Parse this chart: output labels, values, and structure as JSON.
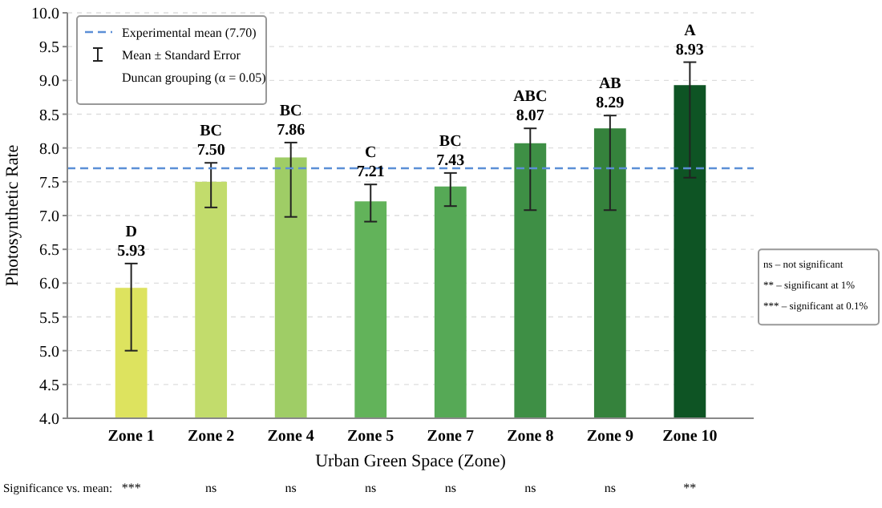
{
  "chart_data": {
    "type": "bar",
    "xlabel": "Urban Green Space (Zone)",
    "ylabel": "Photosynthetic Rate",
    "categories": [
      "Zone 1",
      "Zone 2",
      "Zone 4",
      "Zone 5",
      "Zone 7",
      "Zone 8",
      "Zone 9",
      "Zone 10"
    ],
    "values": [
      5.93,
      7.5,
      7.86,
      7.21,
      7.43,
      8.07,
      8.29,
      8.93
    ],
    "colors": [
      "#dde35f",
      "#c2dc6c",
      "#9fcd66",
      "#62b35a",
      "#56a956",
      "#3e8f45",
      "#35823c",
      "#0e5424"
    ],
    "errors": [
      [
        5.0,
        6.29
      ],
      [
        7.12,
        7.78
      ],
      [
        6.98,
        8.08
      ],
      [
        6.91,
        7.46
      ],
      [
        7.14,
        7.63
      ],
      [
        7.08,
        8.29
      ],
      [
        7.08,
        8.48
      ],
      [
        7.56,
        9.27
      ]
    ],
    "value_labels": [
      "5.93",
      "7.50",
      "7.86",
      "7.21",
      "7.43",
      "8.07",
      "8.29",
      "8.93"
    ],
    "ylim": [
      4.0,
      10.0
    ],
    "yticks": [
      {
        "value": 4,
        "label": "4.0"
      },
      {
        "value": 4.5,
        "label": "4.5"
      },
      {
        "value": 5,
        "label": "5.0"
      },
      {
        "value": 5.5,
        "label": "5.5"
      },
      {
        "value": 6,
        "label": "6.0"
      },
      {
        "value": 6.5,
        "label": "6.5"
      },
      {
        "value": 7,
        "label": "7.0"
      },
      {
        "value": 7.5,
        "label": "7.5"
      },
      {
        "value": 8,
        "label": "8.0"
      },
      {
        "value": 8.5,
        "label": "8.5"
      },
      {
        "value": 9,
        "label": "9.0"
      },
      {
        "value": 9.5,
        "label": "9.5"
      },
      {
        "value": 10,
        "label": "10.0"
      }
    ],
    "grid": "y",
    "legend": "top left",
    "ref_lines": [
      {
        "axis": "y",
        "value": 7.7,
        "label": "Experimental mean (7.70)",
        "color": "#5b8fd6",
        "line_style": "dashed"
      }
    ],
    "annotations": [
      "Mean ± Standard Error",
      "Duncan grouping (α = 0.05)",
      "Significance vs. mean:",
      "***",
      "ns",
      "ns",
      "ns",
      "ns",
      "ns",
      "ns",
      "**",
      "ns – not significant",
      "** – significant at 1%",
      "*** – significant at 0.1%",
      {
        "text": "D",
        "x": "Zone 1",
        "y": 6.29
      },
      {
        "text": "BC",
        "x": "Zone 2",
        "y": 7.78
      },
      {
        "text": "BC",
        "x": "Zone 4",
        "y": 8.08
      },
      {
        "text": "C",
        "x": "Zone 5",
        "y": 7.46
      },
      {
        "text": "BC",
        "x": "Zone 7",
        "y": 7.63
      },
      {
        "text": "ABC",
        "x": "Zone 8",
        "y": 8.29
      },
      {
        "text": "AB",
        "x": "Zone 9",
        "y": 8.48
      },
      {
        "text": "A",
        "x": "Zone 10",
        "y": 9.27
      }
    ]
  }
}
